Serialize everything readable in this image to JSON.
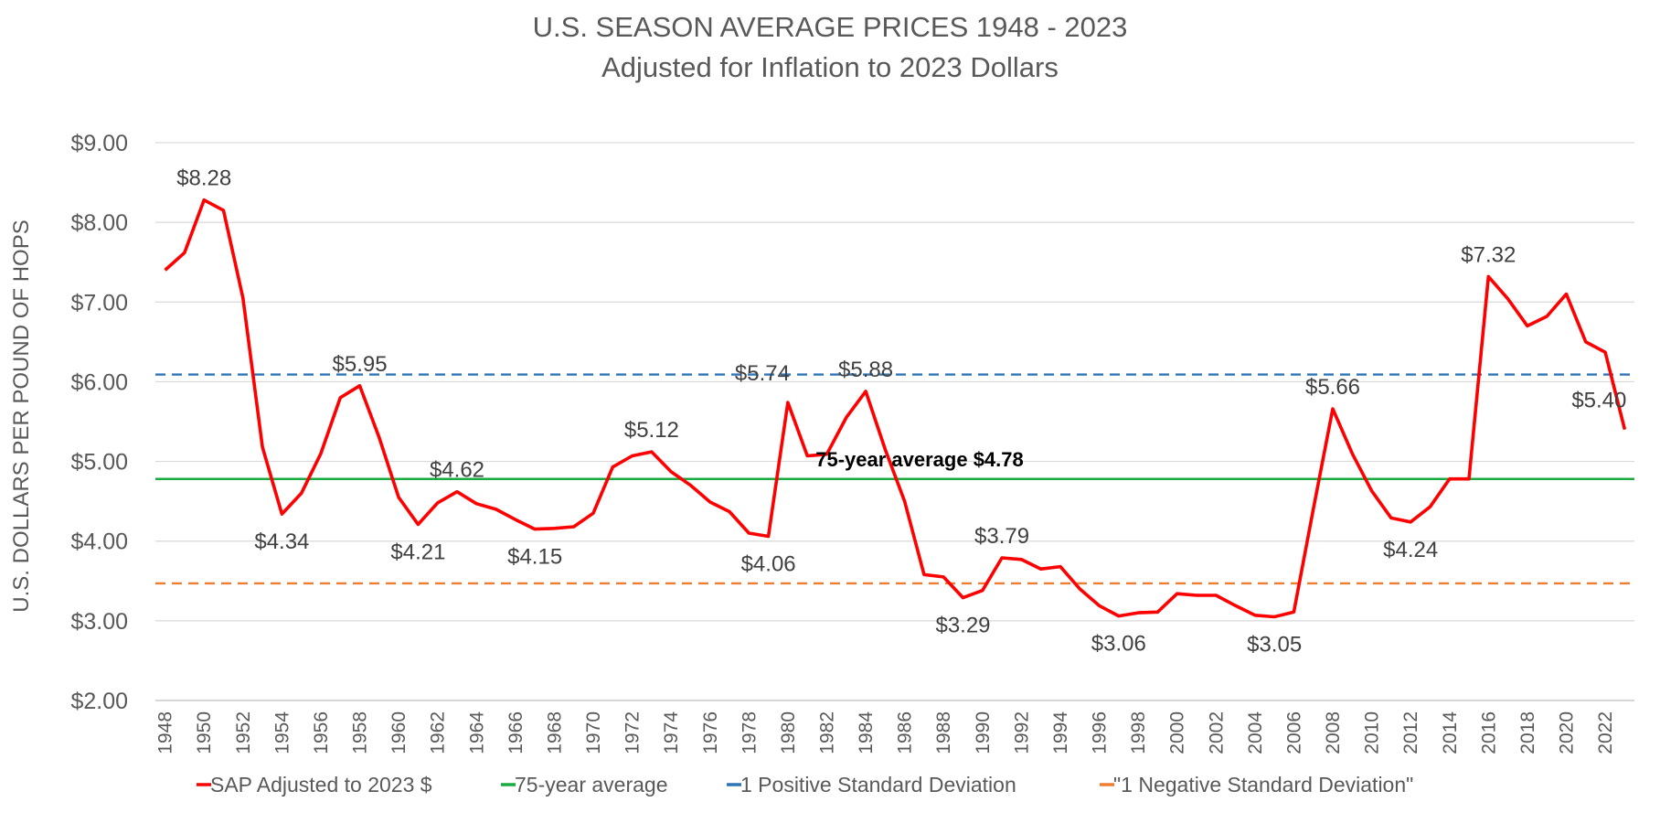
{
  "chart_data": {
    "type": "line",
    "title": "U.S. SEASON AVERAGE PRICES 1948 - 2023",
    "subtitle": "Adjusted for Inflation to 2023 Dollars",
    "ylabel": "U.S. DOLLARS PER POUND OF HOPS",
    "xlabel": "",
    "ylim": [
      2,
      9
    ],
    "y_ticks": [
      "$2.00",
      "$3.00",
      "$4.00",
      "$5.00",
      "$6.00",
      "$7.00",
      "$8.00",
      "$9.00"
    ],
    "x_ticks": [
      "1948",
      "1950",
      "1952",
      "1954",
      "1956",
      "1958",
      "1960",
      "1962",
      "1964",
      "1966",
      "1968",
      "1970",
      "1972",
      "1974",
      "1976",
      "1978",
      "1980",
      "1982",
      "1984",
      "1986",
      "1988",
      "1990",
      "1992",
      "1994",
      "1996",
      "1998",
      "2000",
      "2002",
      "2004",
      "2006",
      "2008",
      "2010",
      "2012",
      "2014",
      "2016",
      "2018",
      "2020",
      "2022"
    ],
    "grid": "horizontal",
    "legend_position": "bottom",
    "x_start": 1948,
    "series": [
      {
        "name": "SAP Adjusted to 2023 $",
        "color": "#ff0000",
        "style": "solid",
        "values": [
          7.4,
          7.62,
          8.28,
          8.15,
          7.05,
          5.18,
          4.34,
          4.6,
          5.1,
          5.8,
          5.95,
          5.3,
          4.55,
          4.21,
          4.48,
          4.62,
          4.47,
          4.4,
          4.27,
          4.15,
          4.16,
          4.18,
          4.35,
          4.93,
          5.07,
          5.12,
          4.87,
          4.7,
          4.49,
          4.37,
          4.1,
          4.06,
          5.74,
          5.07,
          5.09,
          5.55,
          5.88,
          5.15,
          4.5,
          3.58,
          3.55,
          3.29,
          3.38,
          3.79,
          3.77,
          3.65,
          3.68,
          3.4,
          3.19,
          3.06,
          3.1,
          3.11,
          3.34,
          3.32,
          3.32,
          3.19,
          3.07,
          3.05,
          3.11,
          4.4,
          5.66,
          5.1,
          4.63,
          4.29,
          4.24,
          4.43,
          4.78,
          4.78,
          7.32,
          7.04,
          6.7,
          6.82,
          7.1,
          6.5,
          6.37,
          5.4
        ]
      },
      {
        "name": "75-year average",
        "color": "#1aab40",
        "style": "solid",
        "value": 4.78
      },
      {
        "name": "1 Positive Standard Deviation",
        "color": "#2e75b6",
        "style": "dashed",
        "value": 6.09
      },
      {
        "name": "\"1 Negative Standard Deviation\"",
        "color": "#ed7d31",
        "style": "dashed",
        "value": 3.47
      }
    ],
    "data_labels": [
      {
        "year": 1950,
        "text": "$8.28",
        "pos": "above"
      },
      {
        "year": 1954,
        "text": "$4.34",
        "pos": "below"
      },
      {
        "year": 1958,
        "text": "$5.95",
        "pos": "above"
      },
      {
        "year": 1961,
        "text": "$4.21",
        "pos": "below"
      },
      {
        "year": 1963,
        "text": "$4.62",
        "pos": "above"
      },
      {
        "year": 1967,
        "text": "$4.15",
        "pos": "below"
      },
      {
        "year": 1973,
        "text": "$5.12",
        "pos": "above"
      },
      {
        "year": 1979,
        "text": "$4.06",
        "pos": "below"
      },
      {
        "year": 1980,
        "text": "$5.74",
        "pos": "above-left"
      },
      {
        "year": 1984,
        "text": "$5.88",
        "pos": "above"
      },
      {
        "year": 1989,
        "text": "$3.29",
        "pos": "below"
      },
      {
        "year": 1991,
        "text": "$3.79",
        "pos": "above"
      },
      {
        "year": 1997,
        "text": "$3.06",
        "pos": "below"
      },
      {
        "year": 2005,
        "text": "$3.05",
        "pos": "below"
      },
      {
        "year": 2008,
        "text": "$5.66",
        "pos": "above"
      },
      {
        "year": 2012,
        "text": "$4.24",
        "pos": "below"
      },
      {
        "year": 2016,
        "text": "$7.32",
        "pos": "above"
      },
      {
        "year": 2023,
        "text": "$5.40",
        "pos": "above-left"
      }
    ],
    "annotations": [
      {
        "text": "75-year average $4.78"
      }
    ]
  }
}
